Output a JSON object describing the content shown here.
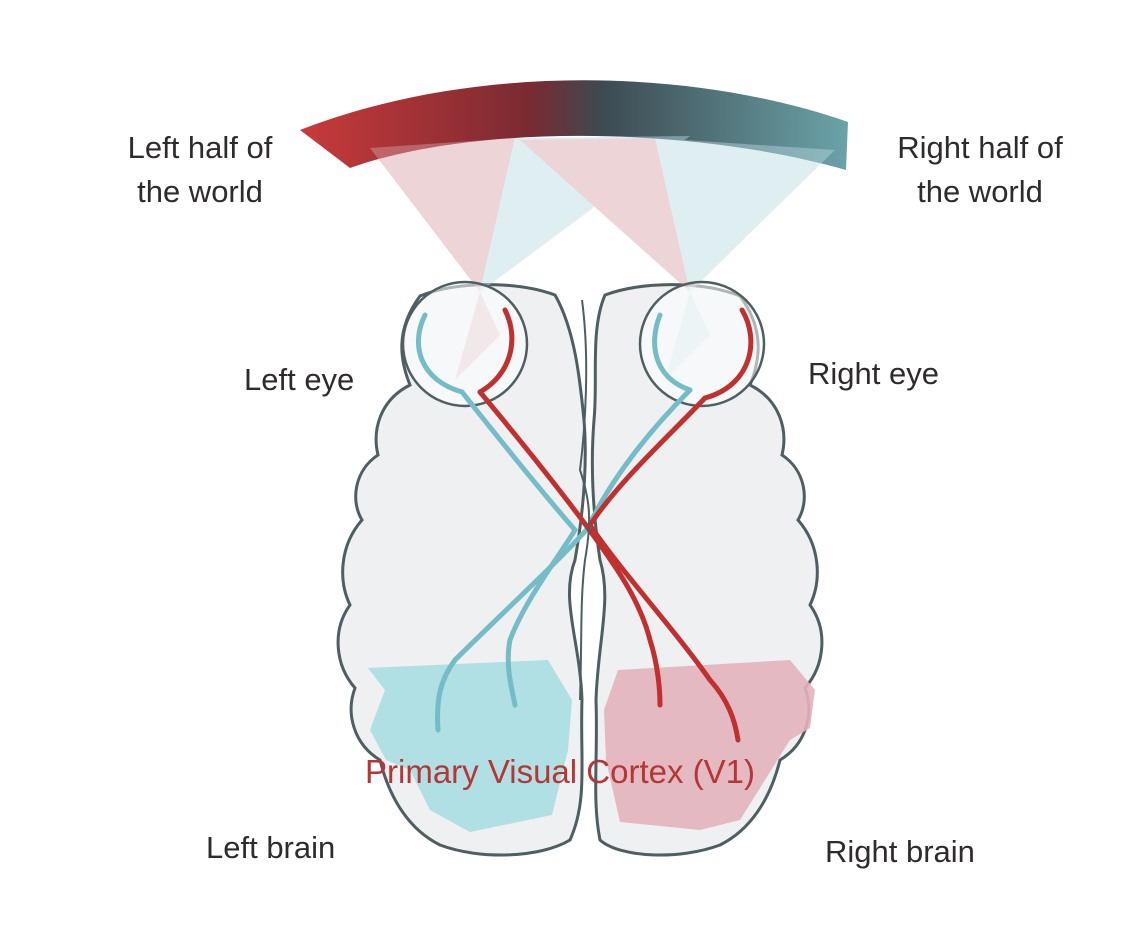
{
  "labels": {
    "left_world_line1": "Left half of",
    "left_world_line2": "the world",
    "right_world_line1": "Right half of",
    "right_world_line2": "the world",
    "left_eye": "Left eye",
    "right_eye": "Right eye",
    "cortex": "Primary Visual Cortex (V1)",
    "left_brain": "Left brain",
    "right_brain": "Right brain"
  },
  "colors": {
    "left_field": "#c93a3a",
    "right_field": "#6aa3a8",
    "left_cortex_fill": "#a9dde2",
    "right_cortex_fill": "#e3b2bc",
    "red_pathway": "#c0302e",
    "cyan_pathway": "#74bcc7",
    "brain_outline": "#4e5e62",
    "brain_fill": "#eef0f2",
    "cortex_text": "#b53634",
    "text": "#2f2b2b"
  }
}
